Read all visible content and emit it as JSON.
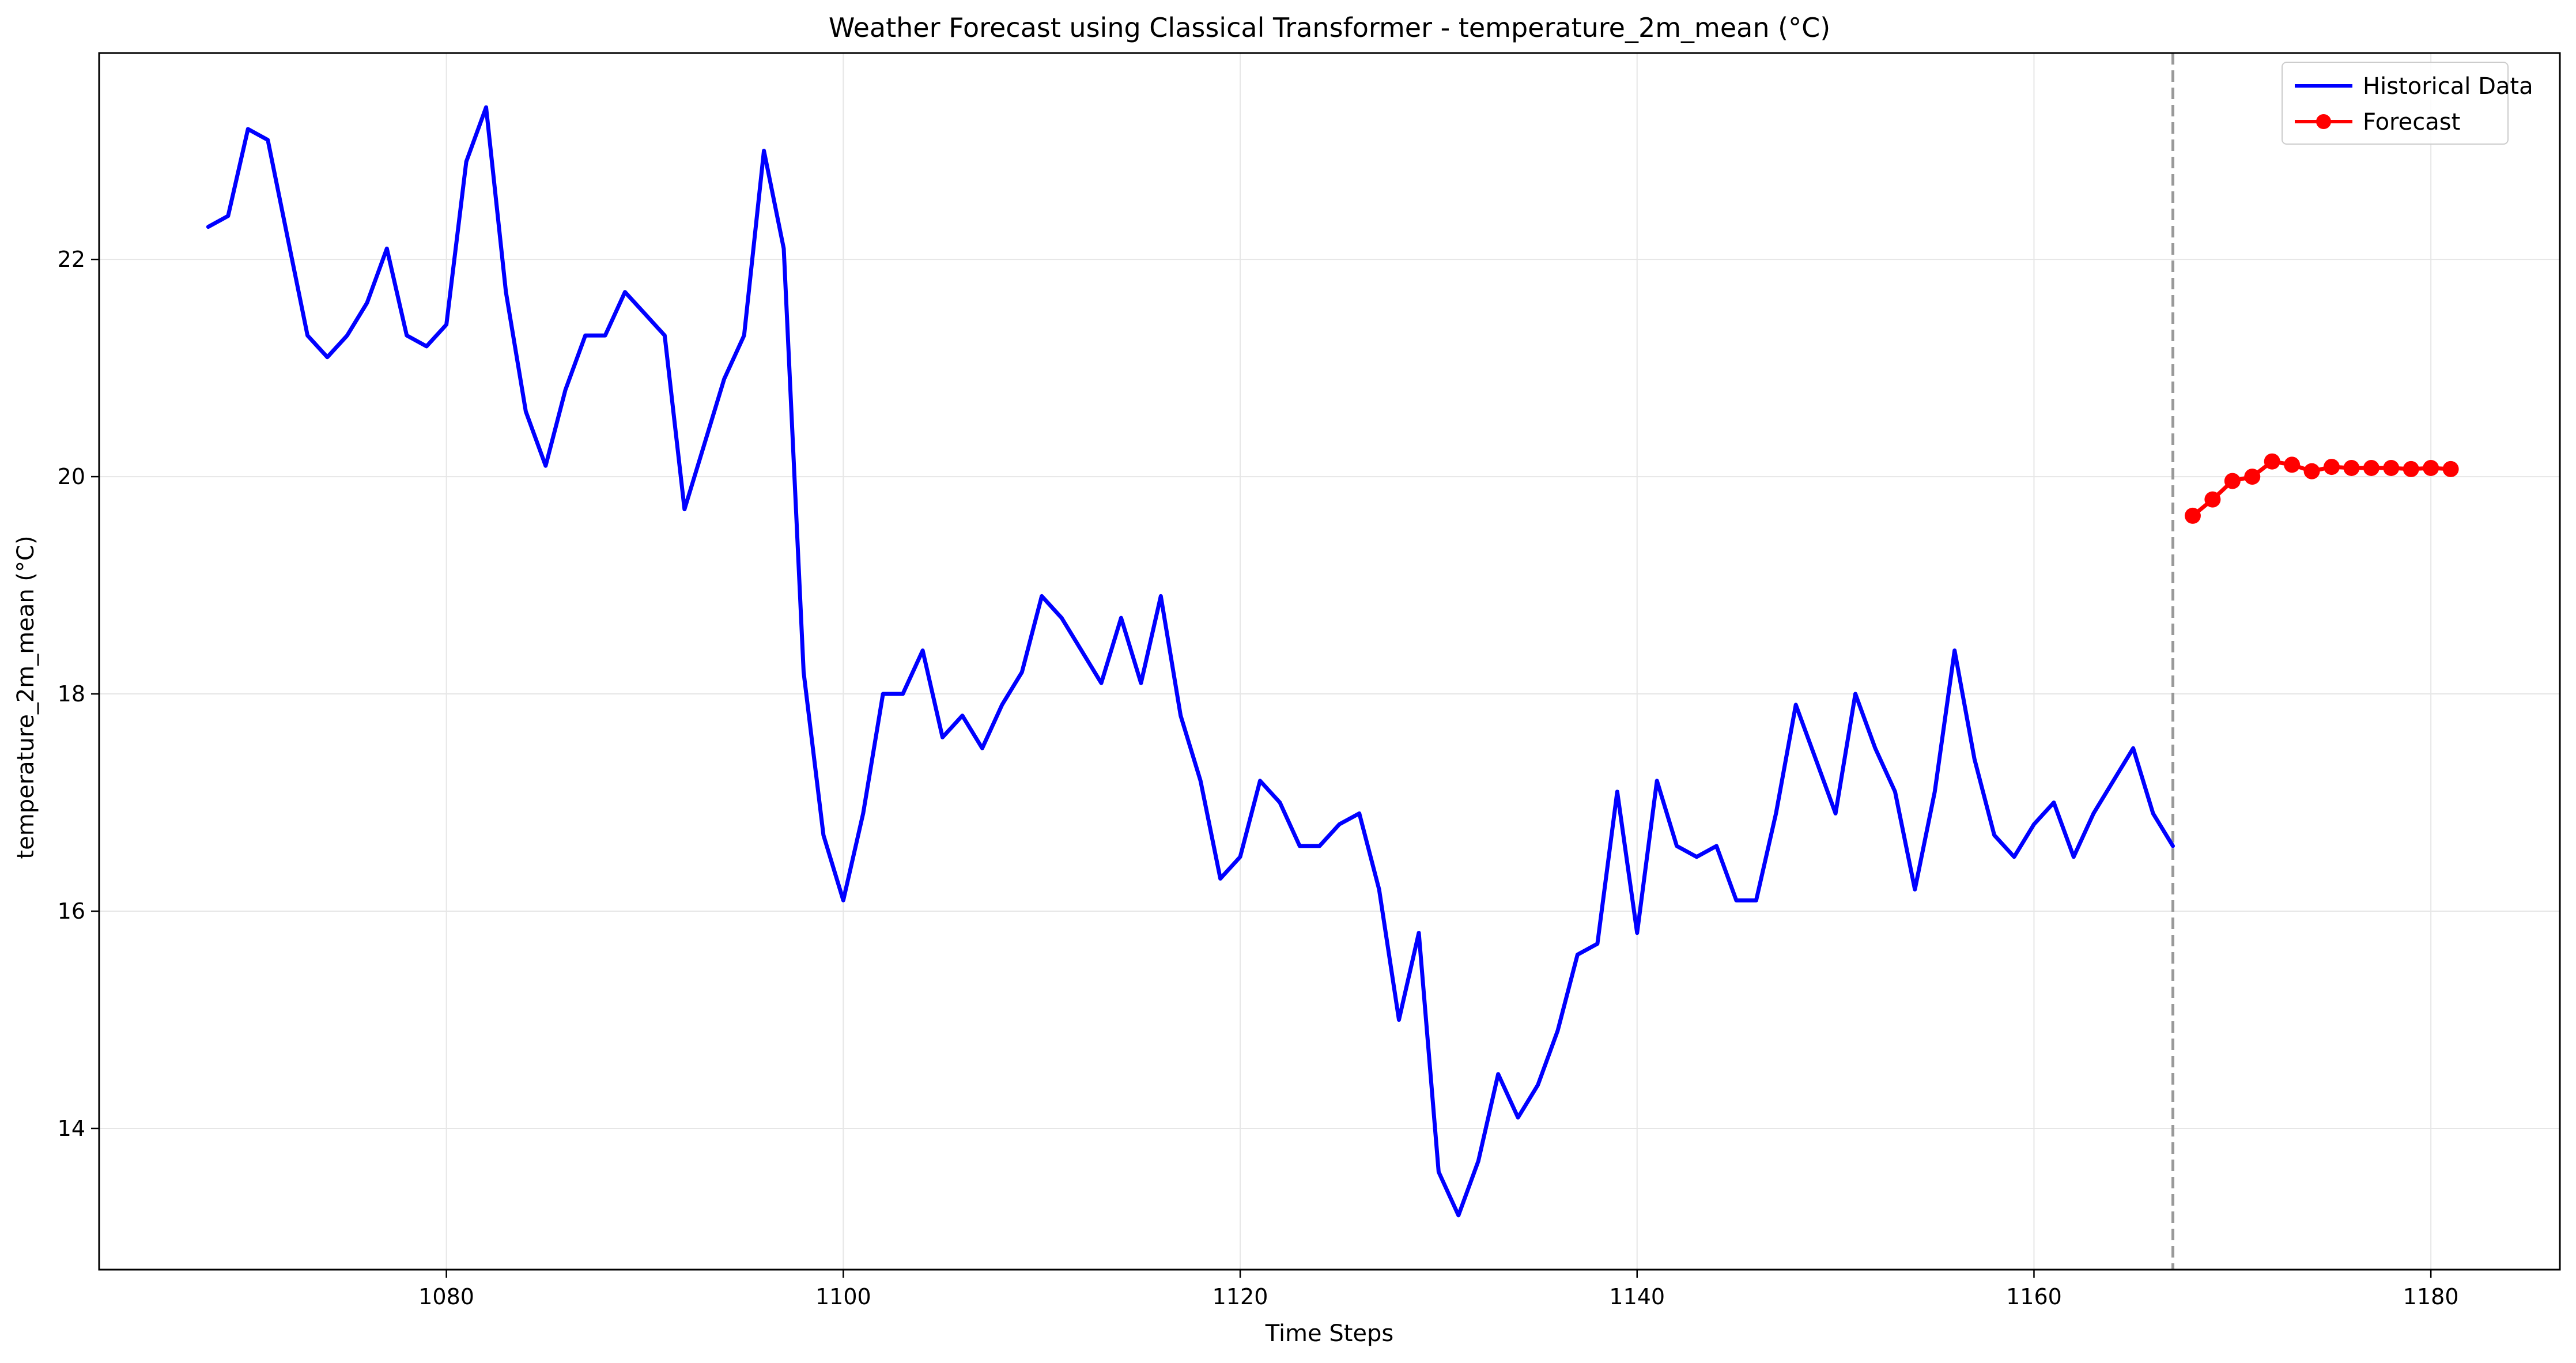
{
  "chart_data": {
    "type": "line",
    "title": "Weather Forecast using Classical Transformer - temperature_2m_mean (°C)",
    "xlabel": "Time Steps",
    "ylabel": "temperature_2m_mean (°C)",
    "xlim": [
      1062.5,
      1186.5
    ],
    "ylim": [
      12.7,
      23.9
    ],
    "xticks": [
      1080,
      1100,
      1120,
      1140,
      1160,
      1180
    ],
    "yticks": [
      14,
      16,
      18,
      20,
      22
    ],
    "grid": true,
    "legend_position": "top-right",
    "divider_x": 1167,
    "series": [
      {
        "name": "Historical Data",
        "color": "#0000ff",
        "style": "solid",
        "x_start": 1068,
        "values": [
          22.3,
          22.4,
          23.2,
          23.1,
          22.2,
          21.3,
          21.1,
          21.3,
          21.6,
          22.1,
          21.3,
          21.2,
          21.4,
          22.9,
          23.4,
          21.7,
          20.6,
          20.1,
          20.8,
          21.3,
          21.3,
          21.7,
          21.5,
          21.3,
          19.7,
          20.3,
          20.9,
          21.3,
          23.0,
          22.1,
          18.2,
          16.7,
          16.1,
          16.9,
          18.0,
          18.0,
          18.4,
          17.6,
          17.8,
          17.5,
          17.9,
          18.2,
          18.9,
          18.7,
          18.4,
          18.1,
          18.7,
          18.1,
          18.9,
          17.8,
          17.2,
          16.3,
          16.5,
          17.2,
          17.0,
          16.6,
          16.6,
          16.8,
          16.9,
          16.2,
          15.0,
          15.8,
          13.6,
          13.2,
          13.7,
          14.5,
          14.1,
          14.4,
          14.9,
          15.6,
          15.7,
          17.1,
          15.8,
          17.2,
          16.6,
          16.5,
          16.6,
          16.1,
          16.1,
          16.9,
          17.9,
          17.4,
          16.9,
          18.0,
          17.5,
          17.1,
          16.2,
          17.1,
          18.4,
          17.4,
          16.7,
          16.5,
          16.8,
          17.0,
          16.5,
          16.9,
          17.2,
          17.5,
          16.9,
          16.6
        ]
      },
      {
        "name": "Forecast",
        "color": "#ff0000",
        "style": "solid-markers",
        "x_start": 1168,
        "values": [
          19.64,
          19.79,
          19.96,
          20.0,
          20.14,
          20.11,
          20.05,
          20.09,
          20.08,
          20.08,
          20.08,
          20.07,
          20.08,
          20.07
        ]
      }
    ]
  }
}
